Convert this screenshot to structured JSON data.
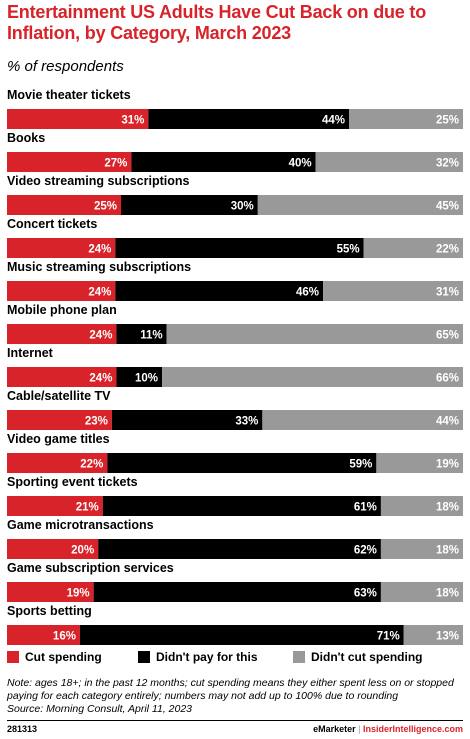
{
  "chart_data": {
    "type": "bar",
    "orientation": "horizontal-stacked-100",
    "title": "Entertainment US Adults Have Cut Back on due to Inflation, by Category, March 2023",
    "subtitle": "% of respondents",
    "categories": [
      "Movie theater tickets",
      "Books",
      "Video streaming subscriptions",
      "Concert tickets",
      "Music streaming subscriptions",
      "Mobile phone plan",
      "Internet",
      "Cable/satellite TV",
      "Video game titles",
      "Sporting event tickets",
      "Game microtransactions",
      "Game subscription services",
      "Sports betting"
    ],
    "series": [
      {
        "name": "Cut spending",
        "color": "#d8232a",
        "label_color": "#ffffff",
        "values": [
          31,
          27,
          25,
          24,
          24,
          24,
          24,
          23,
          22,
          21,
          20,
          19,
          16
        ]
      },
      {
        "name": "Didn't pay for this",
        "color": "#000000",
        "label_color": "#ffffff",
        "values": [
          44,
          40,
          30,
          55,
          46,
          11,
          10,
          33,
          59,
          61,
          62,
          63,
          71
        ]
      },
      {
        "name": "Didn't cut spending",
        "color": "#999999",
        "label_color": "#ffffff",
        "values": [
          25,
          32,
          45,
          22,
          31,
          65,
          66,
          44,
          19,
          18,
          18,
          18,
          13
        ]
      }
    ],
    "value_suffix": "%",
    "legend_position": "bottom",
    "grid": false
  },
  "legend": {
    "items": [
      {
        "label": "Cut spending",
        "color": "#d8232a"
      },
      {
        "label": "Didn't pay for this",
        "color": "#000000"
      },
      {
        "label": "Didn't cut spending",
        "color": "#999999"
      }
    ]
  },
  "note": "Note: ages 18+; in the past 12 months; cut spending means they either spent less on or stopped paying for each category entirely; numbers may not add up to 100% due to rounding",
  "source": "Source: Morning Consult, April 11, 2023",
  "footer": {
    "chart_id": "281313",
    "brand_left": "eMarketer",
    "separator": "|",
    "brand_right": "InsiderIntelligence.com"
  }
}
